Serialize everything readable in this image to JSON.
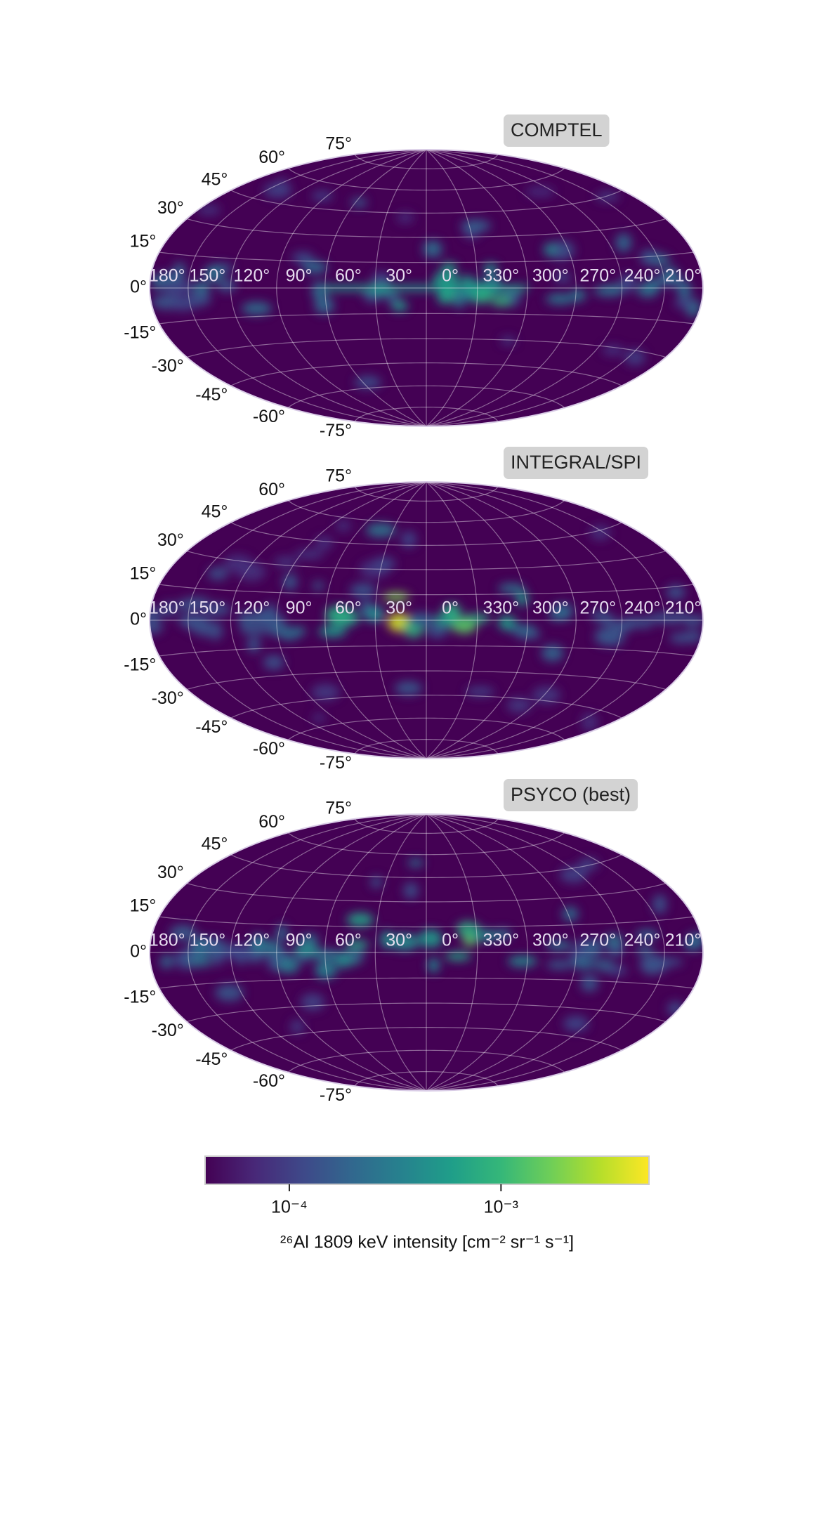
{
  "chart_data": [
    {
      "type": "map",
      "projection": "hammer",
      "title": "COMPTEL",
      "background": "#440154",
      "lon_ticks": [
        {
          "value": 180,
          "label": "180°"
        },
        {
          "value": 150,
          "label": "150°"
        },
        {
          "value": 120,
          "label": "120°"
        },
        {
          "value": 90,
          "label": "90°"
        },
        {
          "value": 60,
          "label": "60°"
        },
        {
          "value": 30,
          "label": "30°"
        },
        {
          "value": 0,
          "label": "0°"
        },
        {
          "value": 330,
          "label": "330°"
        },
        {
          "value": 300,
          "label": "300°"
        },
        {
          "value": 270,
          "label": "270°"
        },
        {
          "value": 240,
          "label": "240°"
        },
        {
          "value": 210,
          "label": "210°"
        }
      ],
      "lat_ticks": [
        {
          "value": 75,
          "label": "75°"
        },
        {
          "value": 60,
          "label": "60°"
        },
        {
          "value": 45,
          "label": "45°"
        },
        {
          "value": 30,
          "label": "30°"
        },
        {
          "value": 15,
          "label": "15°"
        },
        {
          "value": 0,
          "label": "0°"
        },
        {
          "value": -15,
          "label": "-15°"
        },
        {
          "value": -30,
          "label": "-30°"
        },
        {
          "value": -45,
          "label": "-45°"
        },
        {
          "value": -60,
          "label": "-60°"
        },
        {
          "value": -75,
          "label": "-75°"
        }
      ]
    },
    {
      "type": "map",
      "projection": "hammer",
      "title": "INTEGRAL/SPI",
      "background": "#440154",
      "lon_ticks": [
        {
          "value": 180,
          "label": "180°"
        },
        {
          "value": 150,
          "label": "150°"
        },
        {
          "value": 120,
          "label": "120°"
        },
        {
          "value": 90,
          "label": "90°"
        },
        {
          "value": 60,
          "label": "60°"
        },
        {
          "value": 30,
          "label": "30°"
        },
        {
          "value": 0,
          "label": "0°"
        },
        {
          "value": 330,
          "label": "330°"
        },
        {
          "value": 300,
          "label": "300°"
        },
        {
          "value": 270,
          "label": "270°"
        },
        {
          "value": 240,
          "label": "240°"
        },
        {
          "value": 210,
          "label": "210°"
        }
      ],
      "lat_ticks": [
        {
          "value": 75,
          "label": "75°"
        },
        {
          "value": 60,
          "label": "60°"
        },
        {
          "value": 45,
          "label": "45°"
        },
        {
          "value": 30,
          "label": "30°"
        },
        {
          "value": 15,
          "label": "15°"
        },
        {
          "value": 0,
          "label": "0°"
        },
        {
          "value": -15,
          "label": "-15°"
        },
        {
          "value": -30,
          "label": "-30°"
        },
        {
          "value": -45,
          "label": "-45°"
        },
        {
          "value": -60,
          "label": "-60°"
        },
        {
          "value": -75,
          "label": "-75°"
        }
      ]
    },
    {
      "type": "map",
      "projection": "hammer",
      "title": "PSYCO (best)",
      "background": "#440154",
      "lon_ticks": [
        {
          "value": 180,
          "label": "180°"
        },
        {
          "value": 150,
          "label": "150°"
        },
        {
          "value": 120,
          "label": "120°"
        },
        {
          "value": 90,
          "label": "90°"
        },
        {
          "value": 60,
          "label": "60°"
        },
        {
          "value": 30,
          "label": "30°"
        },
        {
          "value": 0,
          "label": "0°"
        },
        {
          "value": 330,
          "label": "330°"
        },
        {
          "value": 300,
          "label": "300°"
        },
        {
          "value": 270,
          "label": "270°"
        },
        {
          "value": 240,
          "label": "240°"
        },
        {
          "value": 210,
          "label": "210°"
        }
      ],
      "lat_ticks": [
        {
          "value": 75,
          "label": "75°"
        },
        {
          "value": 60,
          "label": "60°"
        },
        {
          "value": 45,
          "label": "45°"
        },
        {
          "value": 30,
          "label": "30°"
        },
        {
          "value": 15,
          "label": "15°"
        },
        {
          "value": 0,
          "label": "0°"
        },
        {
          "value": -15,
          "label": "-15°"
        },
        {
          "value": -30,
          "label": "-30°"
        },
        {
          "value": -45,
          "label": "-45°"
        },
        {
          "value": -60,
          "label": "-60°"
        },
        {
          "value": -75,
          "label": "-75°"
        }
      ]
    },
    {
      "type": "colorbar",
      "colormap": "viridis",
      "log": true,
      "clim": [
        4e-05,
        0.005
      ],
      "ticks": [
        {
          "value": 0.0001,
          "label": "10⁻⁴"
        },
        {
          "value": 0.001,
          "label": "10⁻³"
        }
      ],
      "label": "²⁶Al 1809 keV intensity [cm⁻² sr⁻¹ s⁻¹]"
    }
  ]
}
